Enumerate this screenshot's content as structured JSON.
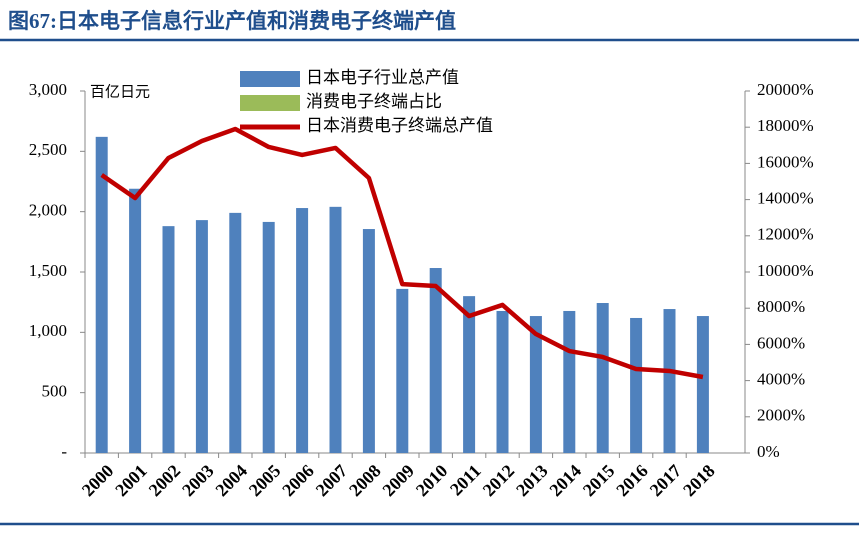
{
  "chart_data": {
    "type": "bar",
    "title": "图67:日本电子信息行业产值和消费电子终端产值",
    "y_unit": "百亿日元",
    "categories": [
      "2000",
      "2001",
      "2002",
      "2003",
      "2004",
      "2005",
      "2006",
      "2007",
      "2008",
      "2009",
      "2010",
      "2011",
      "2012",
      "2013",
      "2014",
      "2015",
      "2016",
      "2017",
      "2018"
    ],
    "series": [
      {
        "name": "日本电子行业总产值",
        "type": "bar",
        "color": "#4f81bd",
        "values": [
          2620,
          2190,
          1880,
          1930,
          1990,
          1915,
          2030,
          2040,
          1856,
          1360,
          1533,
          1300,
          1177,
          1135,
          1177,
          1243,
          1119,
          1193,
          1135
        ]
      },
      {
        "name": "消费电子终端占比",
        "type": "bar",
        "color": "#9bbb59",
        "axis": "y2",
        "values": [
          null,
          null,
          null,
          null,
          null,
          null,
          null,
          null,
          null,
          null,
          null,
          null,
          null,
          null,
          null,
          null,
          null,
          null,
          null
        ]
      },
      {
        "name": "日本消费电子终端总产值",
        "type": "line",
        "color": "#c00000",
        "values": [
          2304,
          2113,
          2445,
          2586,
          2685,
          2536,
          2470,
          2528,
          2279,
          1400,
          1384,
          1135,
          1227,
          986,
          845,
          796,
          696,
          680,
          630
        ]
      }
    ],
    "ylim": [
      0,
      3000
    ],
    "yticks": [
      {
        "value": 0,
        "label": "-"
      },
      500,
      {
        "value": 1000,
        "label": "1,000"
      },
      {
        "value": 1500,
        "label": "1,500"
      },
      {
        "value": 2000,
        "label": "2,000"
      },
      {
        "value": 2500,
        "label": "2,500"
      },
      {
        "value": 3000,
        "label": "3,000"
      }
    ],
    "y2lim": [
      0,
      20000
    ],
    "y2ticks": [
      {
        "value": 0,
        "label": "0%"
      },
      {
        "value": 2000,
        "label": "2000%"
      },
      {
        "value": 4000,
        "label": "4000%"
      },
      {
        "value": 6000,
        "label": "6000%"
      },
      {
        "value": 8000,
        "label": "8000%"
      },
      {
        "value": 10000,
        "label": "10000%"
      },
      {
        "value": 12000,
        "label": "12000%"
      },
      {
        "value": 14000,
        "label": "14000%"
      },
      {
        "value": 16000,
        "label": "16000%"
      },
      {
        "value": 18000,
        "label": "18000%"
      },
      {
        "value": 20000,
        "label": "20000%"
      }
    ]
  }
}
